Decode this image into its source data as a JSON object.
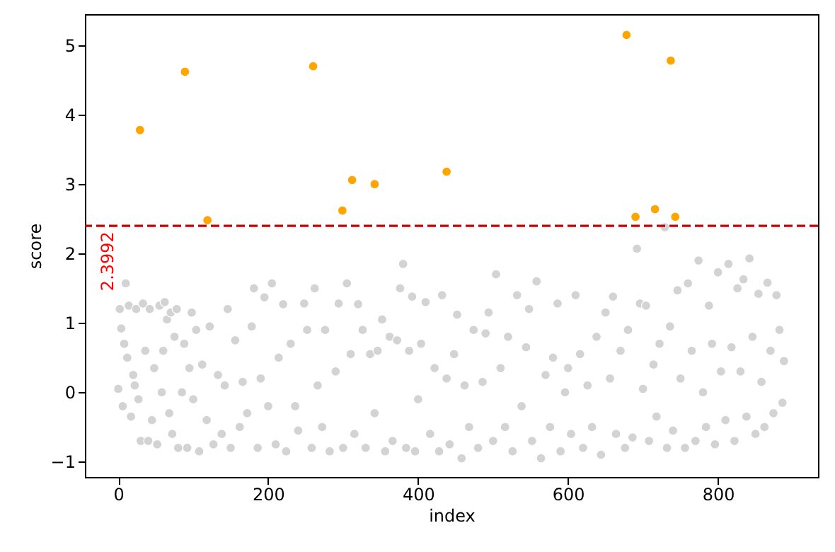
{
  "chart_data": {
    "type": "scatter",
    "xlabel": "index",
    "ylabel": "score",
    "xlim": [
      -44.45,
      933.45
    ],
    "ylim": [
      -1.22,
      5.45
    ],
    "xticks": [
      0,
      200,
      400,
      600,
      800
    ],
    "yticks": [
      -1,
      0,
      1,
      2,
      3,
      4,
      5
    ],
    "grid": false,
    "marker": "circle",
    "series": [
      {
        "color": "#d3d3d3",
        "x": [
          0,
          2,
          4,
          6,
          8,
          10,
          12,
          14,
          17,
          20,
          22,
          24,
          27,
          30,
          33,
          36,
          40,
          42,
          45,
          48,
          52,
          55,
          58,
          60,
          62,
          65,
          68,
          70,
          72,
          75,
          78,
          80,
          85,
          88,
          92,
          95,
          98,
          100,
          104,
          108,
          112,
          118,
          122,
          127,
          133,
          138,
          142,
          146,
          150,
          156,
          162,
          166,
          172,
          178,
          181,
          186,
          190,
          195,
          200,
          205,
          210,
          214,
          220,
          224,
          230,
          236,
          240,
          248,
          252,
          258,
          262,
          266,
          272,
          276,
          282,
          290,
          294,
          300,
          305,
          310,
          315,
          320,
          326,
          330,
          336,
          342,
          346,
          352,
          356,
          362,
          366,
          372,
          376,
          380,
          384,
          388,
          392,
          396,
          400,
          404,
          410,
          416,
          422,
          428,
          432,
          438,
          442,
          448,
          452,
          458,
          462,
          468,
          474,
          480,
          486,
          490,
          494,
          500,
          504,
          510,
          516,
          520,
          526,
          532,
          538,
          544,
          548,
          552,
          558,
          564,
          570,
          576,
          580,
          586,
          590,
          596,
          600,
          604,
          610,
          616,
          620,
          626,
          632,
          638,
          644,
          650,
          656,
          660,
          664,
          670,
          676,
          680,
          686,
          692,
          696,
          700,
          704,
          708,
          714,
          718,
          722,
          729,
          732,
          736,
          740,
          746,
          750,
          756,
          760,
          765,
          770,
          774,
          780,
          784,
          788,
          792,
          796,
          800,
          804,
          810,
          814,
          818,
          822,
          826,
          830,
          834,
          838,
          842,
          846,
          850,
          854,
          858,
          862,
          866,
          870,
          874,
          878,
          882,
          886,
          888
        ],
        "values": [
          0.05,
          1.2,
          0.92,
          -0.2,
          0.7,
          1.57,
          0.5,
          1.25,
          -0.35,
          0.25,
          0.1,
          1.2,
          -0.1,
          -0.7,
          1.28,
          0.6,
          -0.7,
          1.2,
          -0.4,
          0.35,
          -0.75,
          1.25,
          0.0,
          0.6,
          1.3,
          1.05,
          -0.3,
          1.15,
          -0.6,
          0.8,
          1.2,
          -0.8,
          0.0,
          0.7,
          -0.8,
          0.35,
          1.15,
          -0.1,
          0.9,
          -0.85,
          0.4,
          -0.4,
          0.95,
          -0.75,
          0.25,
          -0.6,
          0.1,
          1.2,
          -0.8,
          0.75,
          -0.5,
          0.15,
          -0.3,
          0.95,
          1.5,
          -0.8,
          0.2,
          1.37,
          -0.2,
          1.57,
          -0.75,
          0.5,
          1.27,
          -0.85,
          0.7,
          -0.2,
          -0.55,
          1.28,
          0.9,
          -0.8,
          1.5,
          0.1,
          -0.5,
          0.9,
          -0.85,
          0.3,
          1.28,
          -0.8,
          1.57,
          0.55,
          -0.6,
          1.27,
          0.9,
          -0.8,
          0.55,
          -0.3,
          0.6,
          1.05,
          -0.85,
          0.8,
          -0.7,
          0.75,
          1.5,
          1.85,
          -0.8,
          0.6,
          1.38,
          -0.85,
          -0.1,
          0.7,
          1.3,
          -0.6,
          0.35,
          -0.85,
          1.4,
          0.2,
          -0.75,
          0.55,
          1.12,
          -0.95,
          0.1,
          -0.5,
          0.9,
          -0.8,
          0.15,
          0.85,
          1.15,
          -0.7,
          1.7,
          0.35,
          -0.5,
          0.8,
          -0.85,
          1.4,
          -0.2,
          0.65,
          1.2,
          -0.7,
          1.6,
          -0.95,
          0.25,
          -0.5,
          0.5,
          1.28,
          -0.85,
          0.0,
          0.35,
          -0.6,
          1.4,
          0.55,
          -0.8,
          0.1,
          -0.5,
          0.8,
          -0.9,
          1.15,
          0.2,
          1.38,
          -0.6,
          0.6,
          -0.8,
          0.9,
          -0.65,
          2.07,
          1.28,
          0.05,
          1.25,
          -0.7,
          0.4,
          -0.35,
          0.7,
          2.38,
          -0.8,
          0.95,
          -0.55,
          1.47,
          0.2,
          -0.8,
          1.57,
          0.6,
          -0.7,
          1.9,
          0.0,
          -0.5,
          1.25,
          0.7,
          -0.75,
          1.73,
          0.3,
          -0.4,
          1.85,
          0.65,
          -0.7,
          1.5,
          0.3,
          1.63,
          -0.35,
          1.93,
          0.8,
          -0.6,
          1.42,
          0.15,
          -0.5,
          1.58,
          0.6,
          -0.3,
          1.4,
          0.9,
          -0.15,
          0.45
        ]
      },
      {
        "color": "#ffa500",
        "x": [
          29,
          89,
          119,
          260,
          299,
          312,
          342,
          438,
          678,
          690,
          716,
          737,
          743
        ],
        "values": [
          3.78,
          4.62,
          2.48,
          4.7,
          2.62,
          3.06,
          3.0,
          3.18,
          5.15,
          2.53,
          2.64,
          4.78,
          2.53
        ]
      }
    ],
    "ref_lines": [
      {
        "axis": "y",
        "value": 2.3992,
        "label": "2.3992",
        "color": "#cc0000",
        "line_style": "dashed"
      }
    ]
  }
}
